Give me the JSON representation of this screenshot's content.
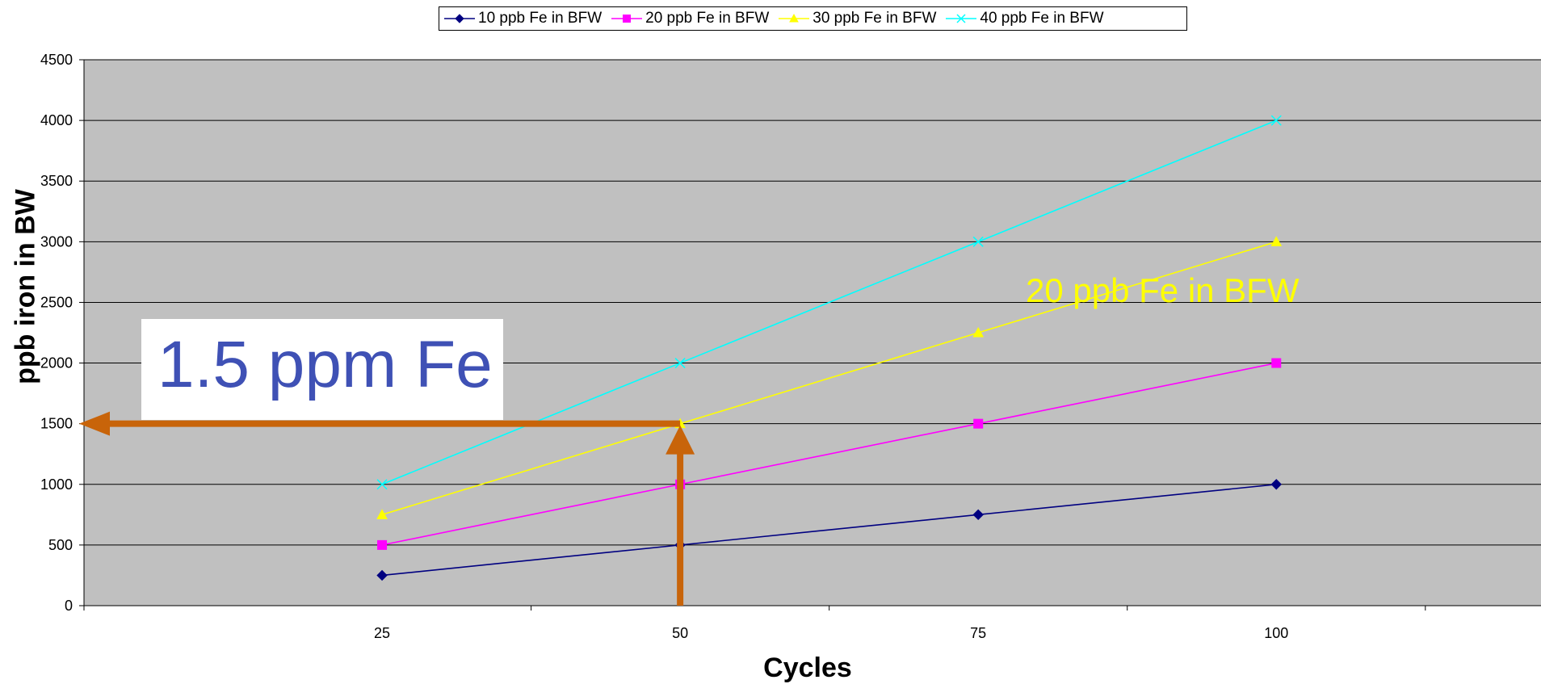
{
  "chart_data": {
    "type": "line",
    "x": [
      25,
      50,
      75,
      100
    ],
    "series": [
      {
        "name": "10 ppb Fe in BFW",
        "values": [
          250,
          500,
          750,
          1000
        ],
        "color": "#000080",
        "marker": "diamond"
      },
      {
        "name": "20 ppb Fe in BFW",
        "values": [
          500,
          1000,
          1500,
          2000
        ],
        "color": "#ff00ff",
        "marker": "square"
      },
      {
        "name": "30 ppb Fe in BFW",
        "values": [
          750,
          1500,
          2250,
          3000
        ],
        "color": "#ffff00",
        "marker": "triangle"
      },
      {
        "name": "40 ppb Fe in BFW",
        "values": [
          1000,
          2000,
          3000,
          4000
        ],
        "color": "#00ffff",
        "marker": "x"
      }
    ],
    "xlabel": "Cycles",
    "ylabel": "ppb iron in BW",
    "ylim": [
      0,
      4500
    ],
    "y_ticks": [
      0,
      500,
      1000,
      1500,
      2000,
      2500,
      3000,
      3500,
      4000,
      4500
    ],
    "x_ticks": [
      25,
      50,
      75,
      100
    ],
    "grid": "horizontal",
    "legend": "top",
    "plot_background": "#c0c0c0",
    "annotations": {
      "callout": "1.5 ppm Fe",
      "series_note": "20 ppb Fe in BFW",
      "arrow_color": "#c8640a",
      "arrow_x": 50,
      "arrow_y": 1500
    }
  }
}
